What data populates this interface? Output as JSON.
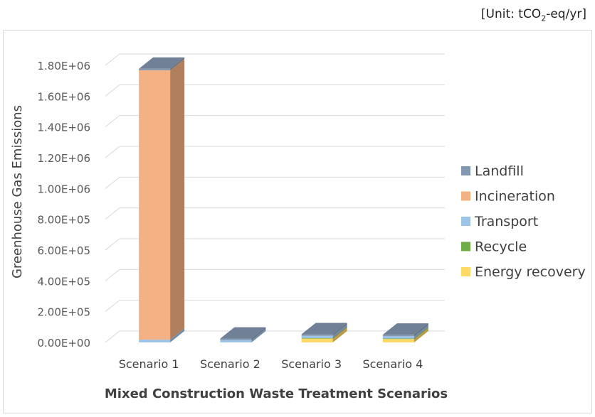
{
  "unit": {
    "prefix": "[Unit: tCO",
    "sub": "2",
    "suffix": "-eq/yr]"
  },
  "chart_data": {
    "type": "bar",
    "stacked": true,
    "three_d": true,
    "xlabel": "Mixed Construction Waste Treatment Scenarios",
    "ylabel": "Greenhouse Gas Emissions",
    "ylim": [
      0,
      1800000
    ],
    "yticks": [
      0,
      200000,
      400000,
      600000,
      800000,
      1000000,
      1200000,
      1400000,
      1600000,
      1800000
    ],
    "ytick_labels": [
      "0.00E+00",
      "2.00E+05",
      "4.00E+05",
      "6.00E+05",
      "8.00E+05",
      "1.00E+06",
      "1.20E+06",
      "1.40E+06",
      "1.60E+06",
      "1.80E+06"
    ],
    "grid": true,
    "legend_position": "right",
    "categories": [
      "Scenario 1",
      "Scenario 2",
      "Scenario 3",
      "Scenario 4"
    ],
    "series": [
      {
        "name": "Energy recovery",
        "color": "#ffd966",
        "values": [
          0,
          0,
          25000,
          22000
        ]
      },
      {
        "name": "Recycle",
        "color": "#70ad47",
        "values": [
          0,
          0,
          3000,
          3000
        ]
      },
      {
        "name": "Transport",
        "color": "#9dc3e6",
        "values": [
          18000,
          15000,
          15000,
          15000
        ]
      },
      {
        "name": "Incineration",
        "color": "#f4b183",
        "values": [
          1750000,
          0,
          0,
          0
        ]
      },
      {
        "name": "Landfill",
        "color": "#8497b0",
        "values": [
          10000,
          10000,
          10000,
          10000
        ]
      }
    ],
    "legend_order": [
      "Landfill",
      "Incineration",
      "Transport",
      "Recycle",
      "Energy recovery"
    ]
  }
}
